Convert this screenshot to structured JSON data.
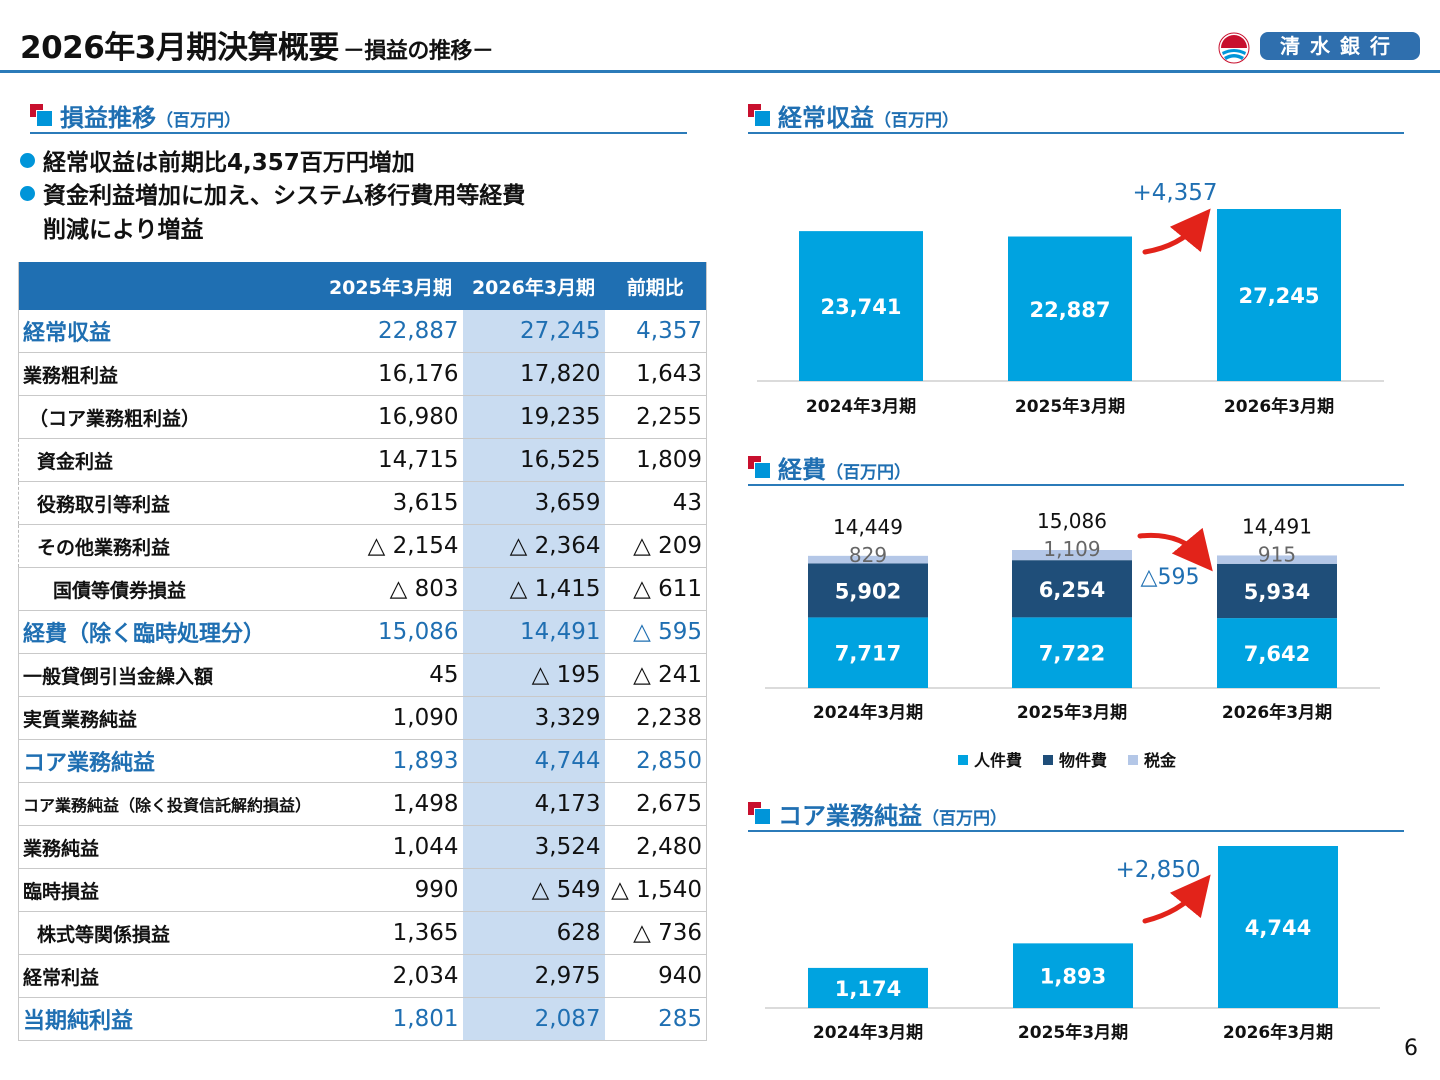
{
  "header": {
    "title": "2026年3月期決算概要",
    "subtitle": "－損益の推移－",
    "logo_text": "清水銀行"
  },
  "left": {
    "section_title": "損益推移",
    "section_unit": "（百万円）",
    "bullets": [
      "経常収益は前期比4,357百万円増加",
      "資金利益増加に加え、システム移行費用等経費",
      "削減により増益"
    ],
    "table": {
      "columns": [
        "",
        "2025年3月期",
        "2026年3月期",
        "前期比"
      ],
      "rows": [
        {
          "label": "経常収益",
          "v2025": "22,887",
          "v2026": "27,245",
          "diff": "4,357"
        },
        {
          "label": "業務粗利益",
          "v2025": "16,176",
          "v2026": "17,820",
          "diff": "1,643"
        },
        {
          "label": "（コア業務粗利益）",
          "v2025": "16,980",
          "v2026": "19,235",
          "diff": "2,255"
        },
        {
          "label": "資金利益",
          "v2025": "14,715",
          "v2026": "16,525",
          "diff": "1,809"
        },
        {
          "label": "役務取引等利益",
          "v2025": "3,615",
          "v2026": "3,659",
          "diff": "43"
        },
        {
          "label": "その他業務利益",
          "v2025": "△ 2,154",
          "v2026": "△ 2,364",
          "diff": "△ 209"
        },
        {
          "label": "国債等債券損益",
          "v2025": "△ 803",
          "v2026": "△ 1,415",
          "diff": "△ 611"
        },
        {
          "label": "経費（除く臨時処理分）",
          "v2025": "15,086",
          "v2026": "14,491",
          "diff": "△ 595"
        },
        {
          "label": "一般貸倒引当金繰入額",
          "v2025": "45",
          "v2026": "△ 195",
          "diff": "△ 241"
        },
        {
          "label": "実質業務純益",
          "v2025": "1,090",
          "v2026": "3,329",
          "diff": "2,238"
        },
        {
          "label": "コア業務純益",
          "v2025": "1,893",
          "v2026": "4,744",
          "diff": "2,850"
        },
        {
          "label": "コア業務純益（除く投資信託解約損益）",
          "v2025": "1,498",
          "v2026": "4,173",
          "diff": "2,675"
        },
        {
          "label": "業務純益",
          "v2025": "1,044",
          "v2026": "3,524",
          "diff": "2,480"
        },
        {
          "label": "臨時損益",
          "v2025": "990",
          "v2026": "△ 549",
          "diff": "△ 1,540"
        },
        {
          "label": "株式等関係損益",
          "v2025": "1,365",
          "v2026": "628",
          "diff": "△ 736"
        },
        {
          "label": "経常利益",
          "v2025": "2,034",
          "v2026": "2,975",
          "diff": "940"
        },
        {
          "label": "当期純利益",
          "v2025": "1,801",
          "v2026": "2,087",
          "diff": "285"
        }
      ]
    }
  },
  "charts": {
    "revenue": {
      "section_title": "経常収益",
      "section_unit": "（百万円）",
      "change_label": "+4,357"
    },
    "expense": {
      "section_title": "経費",
      "section_unit": "（百万円）",
      "change_label": "△595"
    },
    "core": {
      "section_title": "コア業務純益",
      "section_unit": "（百万円）",
      "change_label": "+2,850"
    }
  },
  "chart_data": [
    {
      "type": "bar",
      "title": "経常収益",
      "categories": [
        "2024年3月期",
        "2025年3月期",
        "2026年3月期"
      ],
      "values": [
        23741,
        22887,
        27245
      ],
      "value_labels": [
        "23,741",
        "22,887",
        "27,245"
      ],
      "color": "#00a3e0",
      "annotation": "+4,357"
    },
    {
      "type": "bar",
      "title": "経費",
      "stacked": true,
      "categories": [
        "2024年3月期",
        "2025年3月期",
        "2026年3月期"
      ],
      "totals": [
        14449,
        15086,
        14491
      ],
      "total_labels": [
        "14,449",
        "15,086",
        "14,491"
      ],
      "series": [
        {
          "name": "人件費",
          "values": [
            7717,
            7722,
            7642
          ],
          "labels": [
            "7,717",
            "7,722",
            "7,642"
          ],
          "color": "#00a3e0"
        },
        {
          "name": "物件費",
          "values": [
            5902,
            6254,
            5934
          ],
          "labels": [
            "5,902",
            "6,254",
            "5,934"
          ],
          "color": "#1f4e79"
        },
        {
          "name": "税金",
          "values": [
            829,
            1109,
            915
          ],
          "labels": [
            "829",
            "1,109",
            "915"
          ],
          "color": "#b4c7e7"
        }
      ],
      "legend": "bottom",
      "annotation": "△595"
    },
    {
      "type": "bar",
      "title": "コア業務純益",
      "categories": [
        "2024年3月期",
        "2025年3月期",
        "2026年3月期"
      ],
      "values": [
        1174,
        1893,
        4744
      ],
      "value_labels": [
        "1,174",
        "1,893",
        "4,744"
      ],
      "color": "#00a3e0",
      "annotation": "+2,850"
    }
  ],
  "page_number": "6"
}
